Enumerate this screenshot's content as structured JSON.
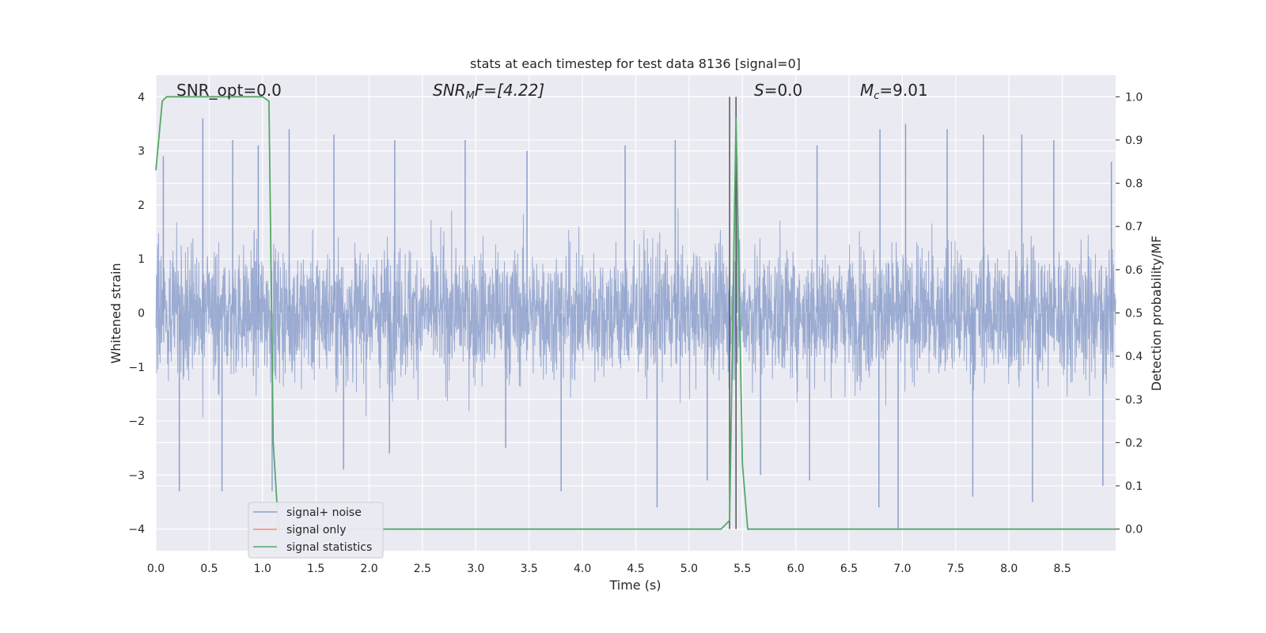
{
  "chart_data": {
    "type": "line",
    "title": "stats at each timestep for test data 8136 [signal=0]",
    "xlabel": "Time (s)",
    "ylabel_left": "Whitened strain",
    "ylabel_right": "Detection probability/MF",
    "xlim": [
      0.0,
      9.0
    ],
    "ylim_left": [
      -4.4,
      4.4
    ],
    "ylim_right": [
      -0.05,
      1.05
    ],
    "x_ticks": [
      "0.0",
      "0.5",
      "1.0",
      "1.5",
      "2.0",
      "2.5",
      "3.0",
      "3.5",
      "4.0",
      "4.5",
      "5.0",
      "5.5",
      "6.0",
      "6.5",
      "7.0",
      "7.5",
      "8.0",
      "8.5"
    ],
    "y_ticks_left": [
      "4",
      "3",
      "2",
      "1",
      "0",
      "−1",
      "−2",
      "−3",
      "−4"
    ],
    "y_ticks_right": [
      "1.0",
      "0.9",
      "0.8",
      "0.7",
      "0.6",
      "0.5",
      "0.4",
      "0.3",
      "0.2",
      "0.1",
      "0.0"
    ],
    "grid": true,
    "legend_placement": "lower-left",
    "annotations": {
      "snr_opt": "SNR_opt=0.0",
      "snr_mf_main": "SNR",
      "snr_mf_sub": "M",
      "snr_mf_rest": "F=[4.22]",
      "s": "=0.0",
      "s_label": "S",
      "mc_label": "M",
      "mc_sub": "c",
      "mc_rest": "=9.01"
    },
    "series": [
      {
        "name": "signal+ noise",
        "color": "#8da0cb",
        "axis": "left",
        "description_values": "noise ~ ±1.6 band with spikes to ±3.6",
        "peaks_x": [
          0.07,
          0.44,
          0.72,
          0.96,
          1.25,
          1.67,
          2.24,
          2.9,
          3.48,
          4.4,
          4.87,
          5.45,
          6.2,
          6.79,
          7.03,
          7.42,
          7.76,
          8.12,
          8.42,
          8.96
        ],
        "peaks_y": [
          2.9,
          3.6,
          3.2,
          3.1,
          3.4,
          3.3,
          3.2,
          3.2,
          3.0,
          3.1,
          3.2,
          2.9,
          3.1,
          3.4,
          3.5,
          3.4,
          3.3,
          3.3,
          3.2,
          2.8
        ],
        "troughs_x": [
          0.22,
          0.62,
          1.09,
          1.76,
          2.19,
          3.28,
          3.8,
          4.7,
          5.17,
          5.67,
          6.13,
          6.78,
          6.96,
          7.66,
          8.22,
          8.88
        ],
        "troughs_y": [
          -3.3,
          -3.3,
          -3.3,
          -2.9,
          -2.6,
          -2.5,
          -3.3,
          -3.6,
          -3.1,
          -3.0,
          -3.1,
          -3.6,
          -4.0,
          -3.4,
          -3.5,
          -3.2
        ]
      },
      {
        "name": "signal only",
        "color": "#fc8d62",
        "axis": "left",
        "x": [],
        "y": []
      },
      {
        "name": "signal statistics",
        "color": "#55a868",
        "axis": "right",
        "x": [
          0.0,
          0.06,
          0.1,
          0.2,
          0.6,
          1.0,
          1.06,
          1.1,
          1.15,
          1.2,
          2.0,
          3.0,
          4.0,
          4.5,
          5.0,
          5.3,
          5.38,
          5.44,
          5.5,
          5.55,
          5.6,
          6.0,
          7.0,
          8.0,
          9.0
        ],
        "y": [
          0.83,
          0.99,
          1.0,
          1.0,
          1.0,
          1.0,
          0.99,
          0.2,
          0.0,
          0.0,
          0.0,
          0.0,
          0.0,
          0.0,
          0.0,
          0.0,
          0.02,
          0.95,
          0.15,
          0.0,
          0.0,
          0.0,
          0.0,
          0.0,
          0.0
        ]
      }
    ],
    "vertical_lines_x": [
      5.38,
      5.44
    ]
  }
}
